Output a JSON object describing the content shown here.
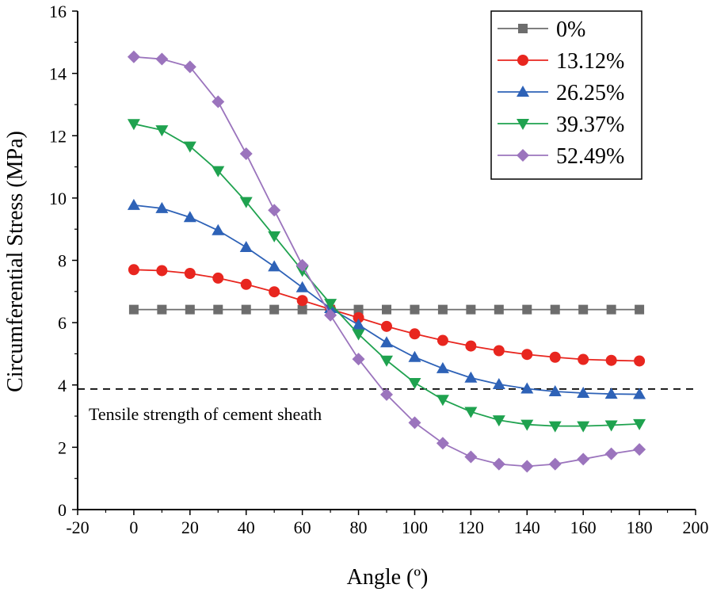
{
  "chart_data": {
    "type": "line",
    "xlabel": "Angle (º)",
    "ylabel": "Circumferential Stress (MPa)",
    "xlim": [
      -20,
      200
    ],
    "ylim": [
      0,
      16
    ],
    "xticks": [
      "-20",
      "0",
      "20",
      "40",
      "60",
      "80",
      "100",
      "120",
      "140",
      "160",
      "180",
      "200"
    ],
    "yticks": [
      "0",
      "2",
      "4",
      "6",
      "8",
      "10",
      "12",
      "14",
      "16"
    ],
    "x": [
      0,
      10,
      20,
      30,
      40,
      50,
      60,
      70,
      80,
      90,
      100,
      110,
      120,
      130,
      140,
      150,
      160,
      170,
      180
    ],
    "legend_position": "top-right",
    "series": [
      {
        "name": "0%",
        "color": "#6d6d6d",
        "marker": "square",
        "values": [
          6.42,
          6.42,
          6.42,
          6.42,
          6.42,
          6.42,
          6.42,
          6.42,
          6.42,
          6.42,
          6.42,
          6.42,
          6.42,
          6.42,
          6.42,
          6.42,
          6.42,
          6.42,
          6.42
        ]
      },
      {
        "name": "13.12%",
        "color": "#e8261f",
        "marker": "circle",
        "values": [
          7.7,
          7.67,
          7.58,
          7.43,
          7.23,
          6.99,
          6.71,
          6.43,
          6.16,
          5.88,
          5.64,
          5.43,
          5.25,
          5.1,
          4.98,
          4.89,
          4.82,
          4.79,
          4.77
        ]
      },
      {
        "name": "26.25%",
        "color": "#2e62b7",
        "marker": "triangle-up",
        "values": [
          9.77,
          9.67,
          9.38,
          8.96,
          8.42,
          7.8,
          7.13,
          6.46,
          5.93,
          5.36,
          4.89,
          4.53,
          4.23,
          4.02,
          3.88,
          3.79,
          3.74,
          3.71,
          3.7
        ]
      },
      {
        "name": "39.37%",
        "color": "#1fa24f",
        "marker": "triangle-down",
        "values": [
          12.38,
          12.18,
          11.66,
          10.87,
          9.88,
          8.78,
          7.67,
          6.61,
          5.63,
          4.79,
          4.07,
          3.53,
          3.14,
          2.87,
          2.73,
          2.68,
          2.68,
          2.71,
          2.75
        ]
      },
      {
        "name": "52.49%",
        "color": "#9b74bd",
        "marker": "diamond",
        "values": [
          14.53,
          14.46,
          14.21,
          13.09,
          11.42,
          9.61,
          7.84,
          6.24,
          4.83,
          3.69,
          2.79,
          2.13,
          1.69,
          1.46,
          1.39,
          1.46,
          1.62,
          1.79,
          1.93
        ]
      }
    ],
    "reference_line": {
      "y": 3.87,
      "label": "Tensile strength of cement sheath",
      "style": "dashed"
    }
  }
}
